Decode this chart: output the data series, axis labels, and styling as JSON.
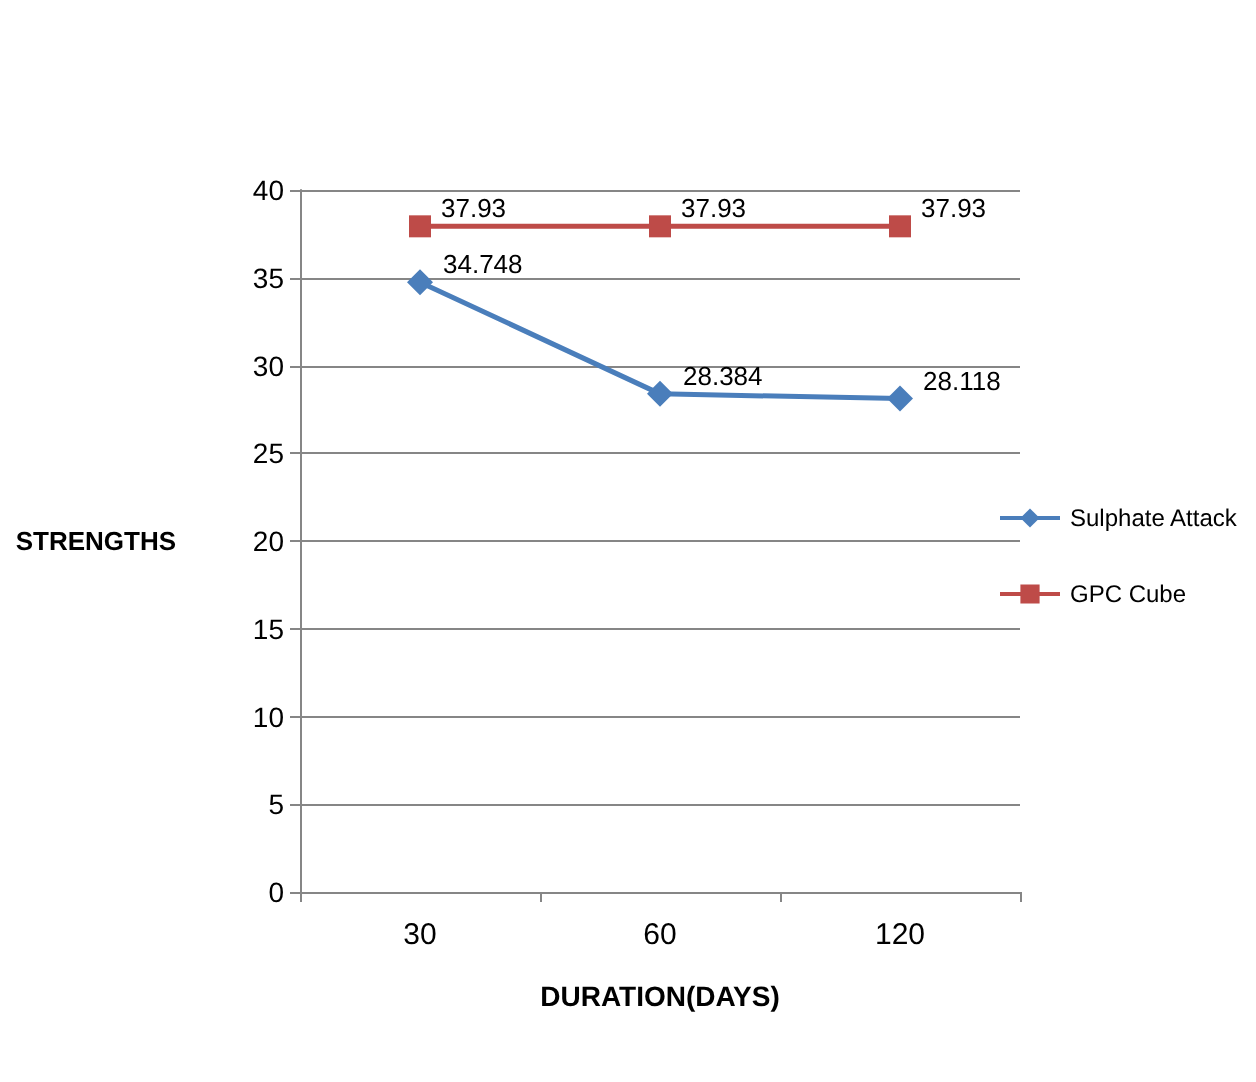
{
  "chart_data": {
    "type": "line",
    "xlabel": "DURATION(DAYS)",
    "ylabel": "STRENGTHS",
    "categories": [
      "30",
      "60",
      "120"
    ],
    "series": [
      {
        "name": "Sulphate Attack",
        "color": "#4a7ebb",
        "marker": "diamond",
        "values": [
          34.748,
          28.384,
          28.118
        ]
      },
      {
        "name": "GPC Cube",
        "color": "#be4b48",
        "marker": "square",
        "values": [
          37.93,
          37.93,
          37.93
        ]
      }
    ],
    "ylim": [
      0,
      40
    ],
    "yticks": [
      0,
      5,
      10,
      15,
      20,
      25,
      30,
      35,
      40
    ],
    "grid": "y",
    "legend": "right",
    "data_labels": true
  }
}
